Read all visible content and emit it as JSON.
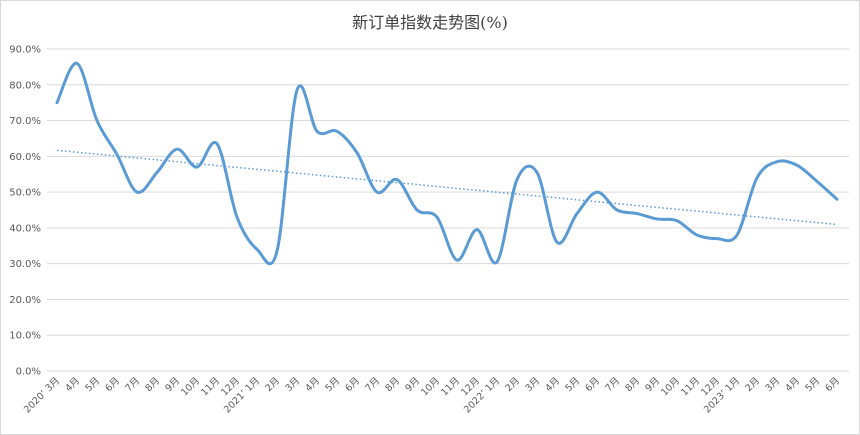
{
  "chart_data": {
    "type": "line",
    "title": "新订单指数走势图(%)",
    "xlabel": "",
    "ylabel": "",
    "ylim": [
      0,
      90
    ],
    "y_ticks": [
      "0.0%",
      "10.0%",
      "20.0%",
      "30.0%",
      "40.0%",
      "50.0%",
      "60.0%",
      "70.0%",
      "80.0%",
      "90.0%"
    ],
    "grid": true,
    "legend": "none",
    "categories": [
      "2020’ 3月",
      "4月",
      "5月",
      "6月",
      "7月",
      "8月",
      "9月",
      "10月",
      "11月",
      "12月",
      "2021’ 1月",
      "2月",
      "3月",
      "4月",
      "5月",
      "6月",
      "7月",
      "8月",
      "9月",
      "10月",
      "11月",
      "12月",
      "2022’ 1月",
      "2月",
      "3月",
      "4月",
      "5月",
      "6月",
      "7月",
      "8月",
      "9月",
      "10月",
      "11月",
      "12月",
      "2023’ 1月",
      "2月",
      "3月",
      "4月",
      "5月",
      "6月"
    ],
    "series": [
      {
        "color": "#5b9bd5",
        "values": [
          75.0,
          86.0,
          70.0,
          60.5,
          50.0,
          55.5,
          62.0,
          57.0,
          63.5,
          43.0,
          34.0,
          33.5,
          78.5,
          67.0,
          67.0,
          61.0,
          50.0,
          53.5,
          45.0,
          43.0,
          31.0,
          39.5,
          30.5,
          53.5,
          55.5,
          36.0,
          44.0,
          50.0,
          45.0,
          44.0,
          42.5,
          42.0,
          38.0,
          37.0,
          38.0,
          54.0,
          58.5,
          57.5,
          53.0,
          48.0
        ]
      }
    ],
    "trendline": {
      "type": "linear",
      "style": "dotted",
      "color": "#5b9bd5"
    }
  }
}
